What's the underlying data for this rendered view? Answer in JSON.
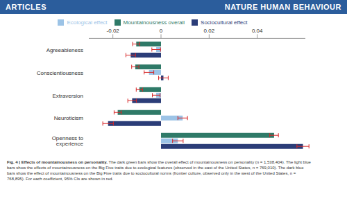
{
  "header": {
    "left": "ARTICLES",
    "right": "NATURE HUMAN BEHAVIOUR"
  },
  "chart_data": {
    "type": "bar",
    "orientation": "horizontal",
    "categories": [
      "Agreeableness",
      "Conscientiousness",
      "Extraversion",
      "Neuroticism",
      "Openness to experience"
    ],
    "series": [
      {
        "name": "Mountainousness overall",
        "color": "#2f7a68",
        "values": [
          -0.0103,
          -0.0107,
          -0.009,
          -0.018,
          0.047
        ],
        "errors": [
          0.0015,
          0.0015,
          0.0013,
          0.0015,
          0.0018
        ]
      },
      {
        "name": "Ecological effect",
        "color": "#9cc3e6",
        "values": [
          -0.002,
          -0.005,
          -0.002,
          0.009,
          0.007
        ],
        "errors": [
          0.0018,
          0.002,
          0.0016,
          0.002,
          0.0022
        ]
      },
      {
        "name": "Sociocultural effect",
        "color": "#2b3d78",
        "values": [
          -0.0126,
          0.001,
          -0.012,
          -0.022,
          0.059
        ],
        "errors": [
          0.002,
          0.002,
          0.0018,
          0.0022,
          0.0025
        ]
      }
    ],
    "xlim": [
      -0.03,
      0.06
    ],
    "xticks": [
      -0.02,
      0,
      0.02,
      0.04
    ],
    "grid": false,
    "legend": "top"
  },
  "caption": {
    "label": "Fig. 4 | Effects of mountainousness on personality.",
    "text": "The dark green bars show the overall effect of mountainousness on personality (n = 1,538,404). The light blue bars show the effects of mountainousness on the Big Five traits due to ecological features (observed in the east of the United States, n = 769,010). The dark blue bars show the effect of mountainousness on the Big Five traits due to sociocultural norms (frontier culture, observed only in the west of the United States, n = 768,895). For each coefficient, 95% CIs are shown in red."
  }
}
